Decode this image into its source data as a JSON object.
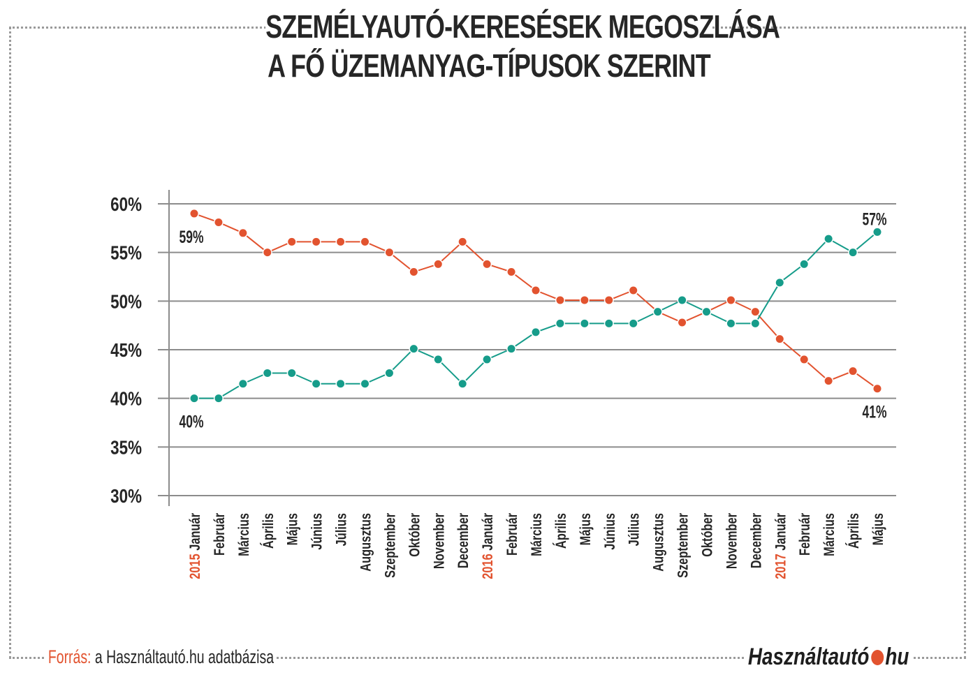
{
  "title_lines": [
    "SZEMÉLYAUTÓ-KERESÉSEK MEGOSZLÁSA",
    "A FŐ ÜZEMANYAG-TÍPUSOK SZERINT"
  ],
  "footer": {
    "source_label": "Forrás:",
    "source_text": "a Használtautó.hu adatbázisa",
    "logo_left": "Használtautó",
    "logo_right": "hu"
  },
  "colors": {
    "orange": "#e2532f",
    "teal": "#169c8a",
    "text": "#262626",
    "grid": "#8c8c8c"
  },
  "chart_data": {
    "type": "line",
    "ylim": [
      30,
      60
    ],
    "yticks": [
      "30%",
      "35%",
      "40%",
      "45%",
      "50%",
      "55%",
      "60%"
    ],
    "ytick_values": [
      30,
      35,
      40,
      45,
      50,
      55,
      60
    ],
    "grid": true,
    "categories": [
      {
        "year": "2015",
        "month": "Január"
      },
      {
        "month": "Február"
      },
      {
        "month": "Március"
      },
      {
        "month": "Április"
      },
      {
        "month": "Május"
      },
      {
        "month": "Június"
      },
      {
        "month": "Július"
      },
      {
        "month": "Augusztus"
      },
      {
        "month": "Szeptember"
      },
      {
        "month": "Október"
      },
      {
        "month": "November"
      },
      {
        "month": "December"
      },
      {
        "year": "2016",
        "month": "Január"
      },
      {
        "month": "Február"
      },
      {
        "month": "Március"
      },
      {
        "month": "Április"
      },
      {
        "month": "Május"
      },
      {
        "month": "Június"
      },
      {
        "month": "Július"
      },
      {
        "month": "Augusztus"
      },
      {
        "month": "Szeptember"
      },
      {
        "month": "Október"
      },
      {
        "month": "November"
      },
      {
        "month": "December"
      },
      {
        "year": "2017",
        "month": "Január"
      },
      {
        "month": "Február"
      },
      {
        "month": "Március"
      },
      {
        "month": "Április"
      },
      {
        "month": "Május"
      }
    ],
    "series": [
      {
        "color": "#e2532f",
        "values": [
          59.0,
          58.1,
          57.0,
          55.0,
          56.1,
          56.1,
          56.1,
          56.1,
          55.0,
          53.0,
          53.8,
          56.1,
          53.8,
          53.0,
          51.1,
          50.1,
          50.1,
          50.1,
          51.1,
          48.9,
          47.8,
          48.9,
          50.1,
          48.9,
          46.1,
          44.0,
          41.8,
          42.8,
          41.0
        ],
        "labels": [
          {
            "index": 0,
            "text": "59%",
            "pos": "below"
          },
          {
            "index": 28,
            "text": "41%",
            "pos": "below"
          }
        ]
      },
      {
        "color": "#169c8a",
        "values": [
          40.0,
          40.0,
          41.5,
          42.6,
          42.6,
          41.5,
          41.5,
          41.5,
          42.6,
          45.1,
          44.0,
          41.5,
          44.0,
          45.1,
          46.8,
          47.7,
          47.7,
          47.7,
          47.7,
          48.9,
          50.1,
          48.9,
          47.7,
          47.7,
          51.9,
          53.8,
          56.4,
          55.0,
          57.1
        ],
        "labels": [
          {
            "index": 0,
            "text": "40%",
            "pos": "below"
          },
          {
            "index": 28,
            "text": "57%",
            "pos": "above"
          }
        ]
      }
    ]
  }
}
